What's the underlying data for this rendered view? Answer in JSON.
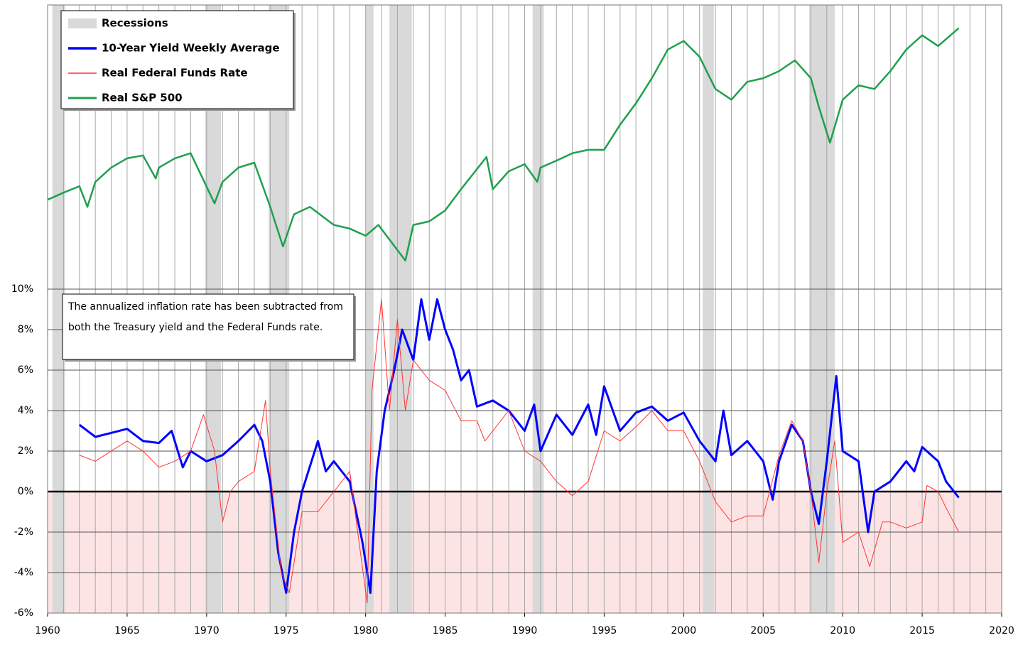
{
  "chart_data": {
    "type": "line",
    "annotation": "The annualized inflation rate has been subtracted from both the Treasury yield and the Federal Funds rate.",
    "xlim": [
      1960,
      2020
    ],
    "xticks": [
      1960,
      1965,
      1970,
      1975,
      1980,
      1985,
      1990,
      1995,
      2000,
      2005,
      2010,
      2015,
      2020
    ],
    "ylim": [
      -6,
      10
    ],
    "yticks": [
      {
        "value": -6,
        "label": "-6%"
      },
      {
        "value": -4,
        "label": "-4%"
      },
      {
        "value": -2,
        "label": "-2%"
      },
      {
        "value": 0,
        "label": "0%"
      },
      {
        "value": 2,
        "label": "2%"
      },
      {
        "value": 4,
        "label": "4%"
      },
      {
        "value": 6,
        "label": "6%"
      },
      {
        "value": 8,
        "label": "8%"
      },
      {
        "value": 10,
        "label": "10%"
      }
    ],
    "y2lim": [
      220,
      2900
    ],
    "y2log": true,
    "grid": true,
    "legend": "upper left",
    "negative_fill": "#fde4e4",
    "recessions": {
      "name": "Recessions",
      "color": "#d9d9d9",
      "periods": [
        [
          1960.3,
          1961.1
        ],
        [
          1969.9,
          1970.9
        ],
        [
          1973.9,
          1975.2
        ],
        [
          1980.0,
          1980.5
        ],
        [
          1981.5,
          1982.9
        ],
        [
          1990.5,
          1991.2
        ],
        [
          2001.2,
          2001.9
        ],
        [
          2007.9,
          2009.5
        ]
      ]
    },
    "series": [
      {
        "name": "10-Year Yield Weekly Average",
        "color": "#0000ff",
        "width": 3,
        "x": [
          1962,
          1963,
          1964,
          1965,
          1966,
          1967,
          1967.8,
          1968.5,
          1969,
          1970,
          1971,
          1972,
          1973,
          1973.5,
          1974,
          1974.5,
          1975,
          1975.5,
          1976,
          1977,
          1977.5,
          1978,
          1979,
          1979.8,
          1980.3,
          1980.7,
          1981.2,
          1981.8,
          1982.3,
          1983,
          1983.5,
          1984,
          1984.5,
          1985,
          1985.5,
          1986,
          1986.5,
          1987,
          1988,
          1989,
          1990,
          1990.6,
          1991,
          1992,
          1993,
          1994,
          1994.5,
          1995,
          1996,
          1997,
          1998,
          1999,
          2000,
          2001,
          2002,
          2002.5,
          2003,
          2004,
          2005,
          2005.6,
          2006,
          2006.8,
          2007.5,
          2008,
          2008.5,
          2009,
          2009.6,
          2010,
          2011,
          2011.6,
          2012,
          2013,
          2014,
          2014.5,
          2015,
          2016,
          2016.5,
          2017.3
        ],
        "values": [
          3.3,
          2.7,
          2.9,
          3.1,
          2.5,
          2.4,
          3.0,
          1.2,
          2.0,
          1.5,
          1.8,
          2.5,
          3.3,
          2.5,
          0.5,
          -3,
          -5,
          -2,
          0,
          2.5,
          1,
          1.5,
          0.5,
          -2.5,
          -5,
          1,
          4,
          6,
          8,
          6.5,
          9.5,
          7.5,
          9.5,
          8,
          7,
          5.5,
          6,
          4.2,
          4.5,
          4,
          3,
          4.3,
          2,
          3.8,
          2.8,
          4.3,
          2.8,
          5.2,
          3,
          3.9,
          4.2,
          3.5,
          3.9,
          2.5,
          1.5,
          4,
          1.8,
          2.5,
          1.5,
          -0.4,
          1.5,
          3.3,
          2.5,
          0,
          -1.6,
          1.5,
          5.7,
          2,
          1.5,
          -2,
          0,
          0.5,
          1.5,
          1,
          2.2,
          1.5,
          0.5,
          -0.3
        ]
      },
      {
        "name": "Real Federal Funds Rate",
        "color": "#ff3333",
        "width": 1,
        "x": [
          1962,
          1963,
          1964,
          1965,
          1966,
          1967,
          1968,
          1969,
          1969.8,
          1970.5,
          1971,
          1971.5,
          1972,
          1973,
          1973.7,
          1974,
          1974.7,
          1975.2,
          1975.8,
          1976,
          1977,
          1978,
          1979,
          1979.5,
          1980.1,
          1980.4,
          1981,
          1981.5,
          1982,
          1982.5,
          1983,
          1984,
          1985,
          1986,
          1987,
          1987.5,
          1988,
          1989,
          1990,
          1991,
          1992,
          1993,
          1994,
          1995,
          1996,
          1997,
          1998,
          1999,
          2000,
          2001,
          2002,
          2003,
          2004,
          2005,
          2006,
          2006.8,
          2007.5,
          2008,
          2008.5,
          2009,
          2009.5,
          2010,
          2011,
          2011.7,
          2012.5,
          2013,
          2014,
          2015,
          2015.3,
          2016,
          2016.5,
          2017.3
        ],
        "values": [
          1.8,
          1.5,
          2,
          2.5,
          2,
          1.2,
          1.5,
          2,
          3.8,
          2,
          -1.5,
          0,
          0.5,
          1,
          4.5,
          1,
          -4,
          -5,
          -2,
          -1,
          -1,
          0,
          1,
          -2,
          -5.5,
          5,
          9.5,
          4,
          8.5,
          4,
          6.5,
          5.5,
          5,
          3.5,
          3.5,
          2.5,
          3,
          4,
          2,
          1.5,
          0.5,
          -0.2,
          0.5,
          3,
          2.5,
          3.2,
          4,
          3,
          3,
          1.5,
          -0.5,
          -1.5,
          -1.2,
          -1.2,
          1.8,
          3.5,
          2.5,
          0,
          -3.5,
          0,
          2.5,
          -2.5,
          -2,
          -3.7,
          -1.5,
          -1.5,
          -1.8,
          -1.5,
          0.3,
          0,
          -0.8,
          -2
        ]
      },
      {
        "name": "Real S&P 500",
        "color": "#1fa04f",
        "width": 2.5,
        "axis": "y2",
        "x": [
          1960,
          1961,
          1962,
          1962.5,
          1963,
          1964,
          1965,
          1966,
          1966.8,
          1967,
          1968,
          1969,
          1970.5,
          1971,
          1972,
          1973,
          1974,
          1974.8,
          1975.5,
          1976.5,
          1978,
          1979,
          1980,
          1980.8,
          1982.5,
          1983,
          1984,
          1985,
          1986,
          1987.6,
          1988,
          1989,
          1990,
          1990.8,
          1991,
          1992,
          1993,
          1994,
          1995,
          1996,
          1997,
          1998,
          1999,
          2000,
          2001,
          2002,
          2003,
          2004,
          2005,
          2006,
          2007,
          2008,
          2008.5,
          2009.2,
          2010,
          2011,
          2012,
          2013,
          2014,
          2015,
          2016,
          2017.3
        ],
        "values": [
          495,
          528,
          560,
          464,
          582,
          663,
          721,
          740,
          601,
          663,
          721,
          755,
          479,
          582,
          663,
          693,
          464,
          324,
          434,
          464,
          394,
          381,
          357,
          394,
          285,
          394,
          407,
          449,
          545,
          730,
          545,
          641,
          684,
          582,
          663,
          706,
          755,
          779,
          779,
          978,
          1188,
          1492,
          1934,
          2091,
          1812,
          1353,
          1228,
          1444,
          1492,
          1591,
          1755,
          1492,
          1150,
          831,
          1228,
          1399,
          1353,
          1591,
          1934,
          2202,
          1998,
          2350
        ]
      }
    ]
  }
}
